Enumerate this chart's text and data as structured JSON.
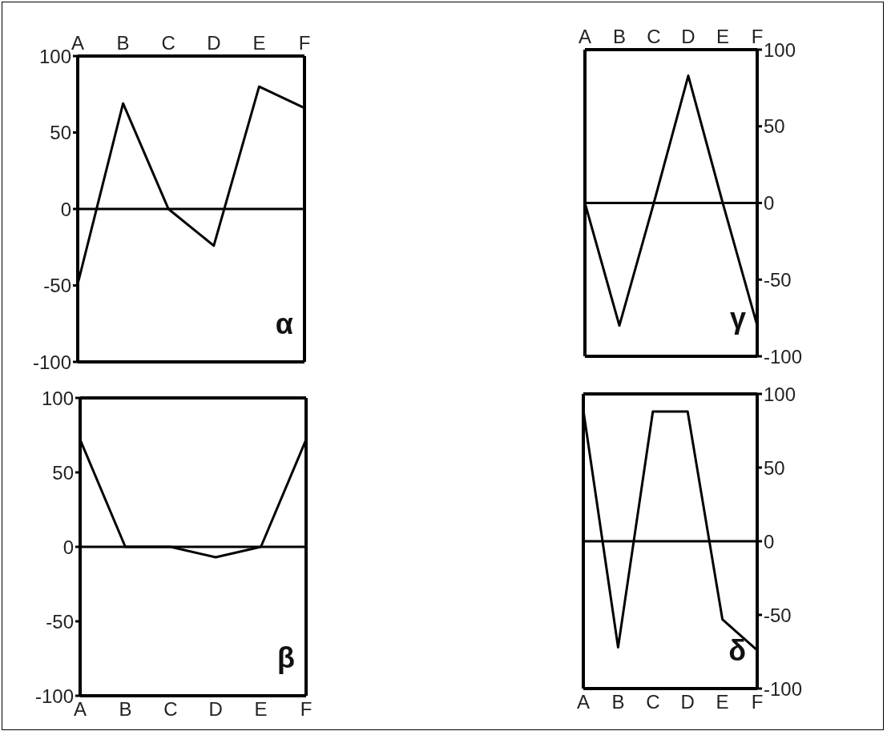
{
  "chart_data": [
    {
      "type": "line",
      "categories": [
        "A",
        "B",
        "C",
        "D",
        "E",
        "F"
      ],
      "series": [
        {
          "color": "#000000",
          "values": [
            -49,
            69,
            0,
            -24,
            80,
            66
          ]
        }
      ],
      "ylim": [
        -100,
        100
      ],
      "yticks": [
        -100,
        -50,
        0,
        50,
        100
      ],
      "ref_lines": [
        {
          "axis": "y",
          "value": 0,
          "color": "#000000"
        }
      ],
      "annotations": [
        "α"
      ],
      "marker": "none",
      "grid": false,
      "legend": false
    },
    {
      "type": "line",
      "categories": [
        "A",
        "B",
        "C",
        "D",
        "E",
        "F"
      ],
      "series": [
        {
          "color": "#000000",
          "values": [
            0,
            -80,
            0,
            83,
            0,
            -80
          ],
          "axis": "y2"
        }
      ],
      "y2lim": [
        -100,
        100
      ],
      "y2ticks": [
        -100,
        -50,
        0,
        50,
        100
      ],
      "ref_lines": [
        {
          "axis": "y2",
          "value": 0,
          "color": "#000000"
        }
      ],
      "annotations": [
        "γ"
      ],
      "marker": "none",
      "grid": false,
      "legend": false
    },
    {
      "type": "line",
      "categories": [
        "A",
        "B",
        "C",
        "D",
        "E",
        "F"
      ],
      "series": [
        {
          "color": "#000000",
          "values": [
            72,
            0,
            0,
            -7,
            0,
            72
          ]
        }
      ],
      "ylim": [
        -100,
        100
      ],
      "yticks": [
        -100,
        -50,
        0,
        50,
        100
      ],
      "ref_lines": [
        {
          "axis": "y",
          "value": 0,
          "color": "#000000"
        }
      ],
      "annotations": [
        "β"
      ],
      "marker": "none",
      "grid": false,
      "legend": false
    },
    {
      "type": "line",
      "categories": [
        "A",
        "B",
        "C",
        "D",
        "E",
        "F"
      ],
      "series": [
        {
          "color": "#000000",
          "values": [
            89,
            -72,
            88,
            88,
            -53,
            -74
          ],
          "axis": "y2"
        }
      ],
      "y2lim": [
        -100,
        100
      ],
      "y2ticks": [
        -100,
        -50,
        0,
        50,
        100
      ],
      "ref_lines": [
        {
          "axis": "y2",
          "value": 0,
          "color": "#000000"
        }
      ],
      "annotations": [
        "δ"
      ],
      "marker": "none",
      "grid": false,
      "legend": false
    }
  ]
}
